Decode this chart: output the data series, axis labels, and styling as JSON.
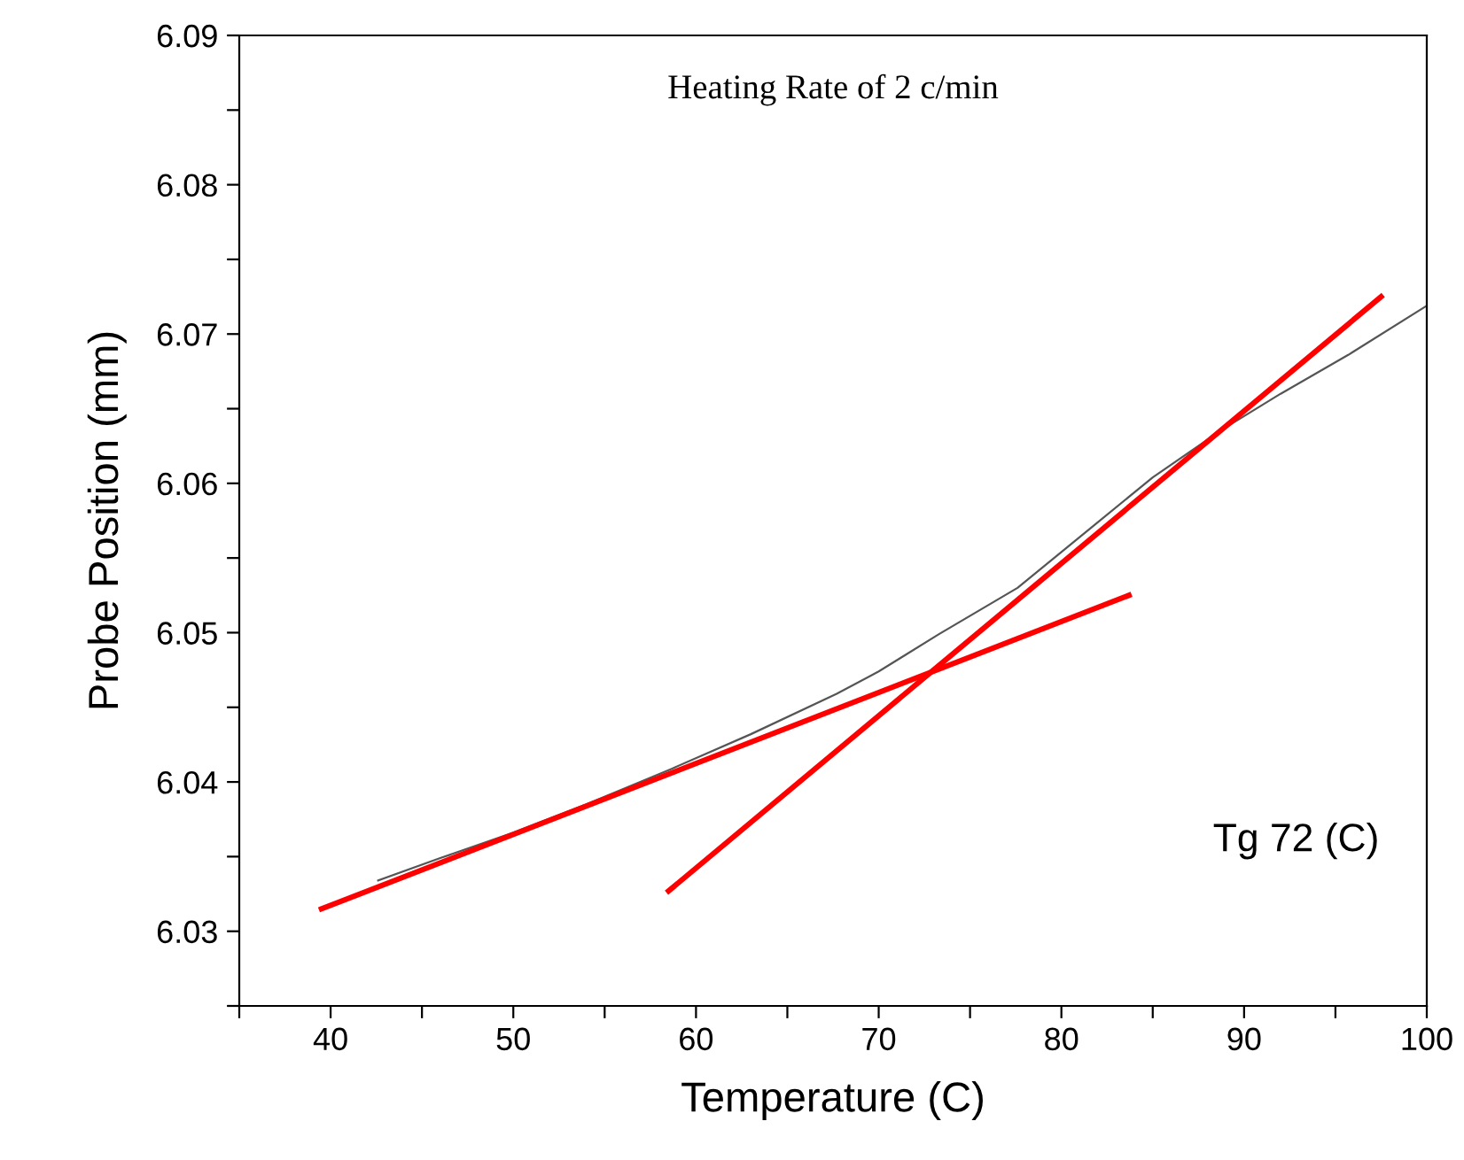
{
  "chart_data": {
    "type": "line",
    "title": "Heating Rate of 2 c/min",
    "xlabel": "Temperature (C)",
    "ylabel": "Probe Position (mm)",
    "annotations": [
      "Tg 72 (C)"
    ],
    "series": [
      {
        "color": "#555555",
        "x": [
          42.6,
          46,
          50,
          54,
          58.7,
          63,
          67.7,
          70,
          73.3,
          77.6,
          81.9,
          85,
          88.8,
          92,
          95.7,
          100
        ],
        "values": [
          6.0334,
          6.0349,
          6.0366,
          6.0385,
          6.0409,
          6.0432,
          6.0459,
          6.0474,
          6.0499,
          6.053,
          6.0573,
          6.0604,
          6.0636,
          6.066,
          6.0686,
          6.0719
        ]
      },
      {
        "color": "#ff0000",
        "x": [
          39.5,
          83.7
        ],
        "values": [
          6.0315,
          6.0525
        ]
      },
      {
        "color": "#ff0000",
        "x": [
          58.5,
          97.5
        ],
        "values": [
          6.0327,
          6.0725
        ]
      }
    ],
    "xlim": [
      35,
      100
    ],
    "xticks": [
      {
        "value": 35,
        "label": null
      },
      40,
      {
        "value": 45,
        "label": null
      },
      50,
      {
        "value": 55,
        "label": null
      },
      60,
      {
        "value": 65,
        "label": null
      },
      70,
      {
        "value": 75,
        "label": null
      },
      80,
      {
        "value": 85,
        "label": null
      },
      90,
      {
        "value": 95,
        "label": null
      },
      100
    ],
    "ylim": [
      6.025,
      6.09
    ],
    "yticks": [
      {
        "value": 6.025,
        "label": null
      },
      6.03,
      {
        "value": 6.035,
        "label": null
      },
      6.04,
      {
        "value": 6.045,
        "label": null
      },
      6.05,
      {
        "value": 6.055,
        "label": null
      },
      6.06,
      {
        "value": 6.065,
        "label": null
      },
      6.07,
      {
        "value": 6.075,
        "label": null
      },
      6.08,
      {
        "value": 6.085,
        "label": null
      },
      6.09
    ],
    "grid": false,
    "legend": false,
    "marker": "none",
    "line_style": "solid"
  }
}
